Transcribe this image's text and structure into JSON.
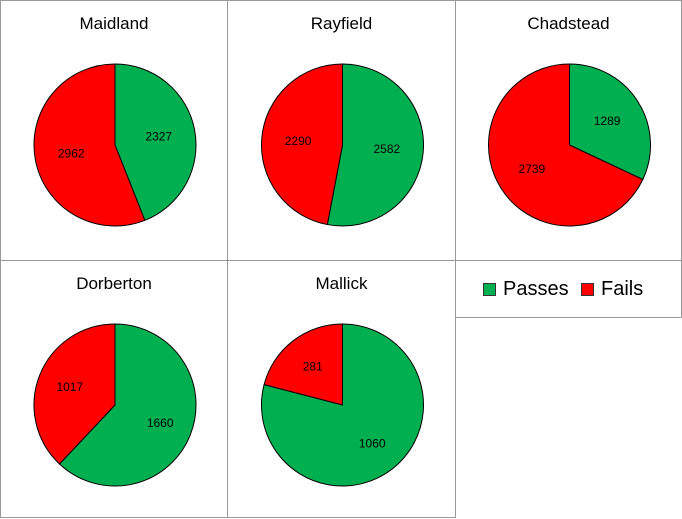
{
  "colors": {
    "passes": "#00b050",
    "fails": "#ff0000",
    "stroke": "#000000"
  },
  "legend": {
    "passes_label": "Passes",
    "fails_label": "Fails"
  },
  "chart_data": [
    {
      "type": "pie",
      "title": "Maidland",
      "categories": [
        "Passes",
        "Fails"
      ],
      "values": [
        2327,
        2962
      ]
    },
    {
      "type": "pie",
      "title": "Rayfield",
      "categories": [
        "Passes",
        "Fails"
      ],
      "values": [
        2582,
        2290
      ]
    },
    {
      "type": "pie",
      "title": "Chadstead",
      "categories": [
        "Passes",
        "Fails"
      ],
      "values": [
        1289,
        2739
      ]
    },
    {
      "type": "pie",
      "title": "Dorberton",
      "categories": [
        "Passes",
        "Fails"
      ],
      "values": [
        1660,
        1017
      ]
    },
    {
      "type": "pie",
      "title": "Mallick",
      "categories": [
        "Passes",
        "Fails"
      ],
      "values": [
        1060,
        281
      ]
    }
  ]
}
